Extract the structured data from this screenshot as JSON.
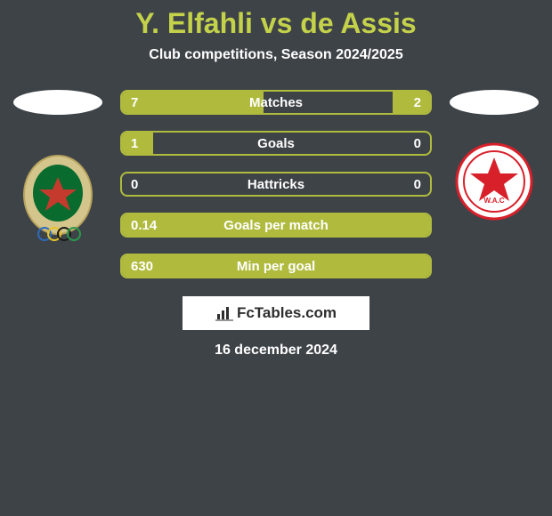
{
  "header": {
    "title": "Y. Elfahli vs de Assis",
    "subtitle": "Club competitions, Season 2024/2025"
  },
  "colors": {
    "background": "#3e4348",
    "accent": "#b0bb3e",
    "title": "#c4d24a",
    "text": "#ffffff",
    "watermark_bg": "#ffffff",
    "watermark_text": "#2e2e2e"
  },
  "stats": [
    {
      "label": "Matches",
      "left_val": "7",
      "right_val": "2",
      "left_pct": 46,
      "right_pct": 12
    },
    {
      "label": "Goals",
      "left_val": "1",
      "right_val": "0",
      "left_pct": 10,
      "right_pct": 0
    },
    {
      "label": "Hattricks",
      "left_val": "0",
      "right_val": "0",
      "left_pct": 0,
      "right_pct": 0
    },
    {
      "label": "Goals per match",
      "left_val": "0.14",
      "right_val": "",
      "left_pct": 100,
      "right_pct": 0
    },
    {
      "label": "Min per goal",
      "left_val": "630",
      "right_val": "",
      "left_pct": 100,
      "right_pct": 0
    }
  ],
  "watermark": {
    "text": "FcTables.com"
  },
  "date": "16 december 2024",
  "logos": {
    "left_name": "club-logo-left",
    "right_name": "club-logo-right"
  }
}
